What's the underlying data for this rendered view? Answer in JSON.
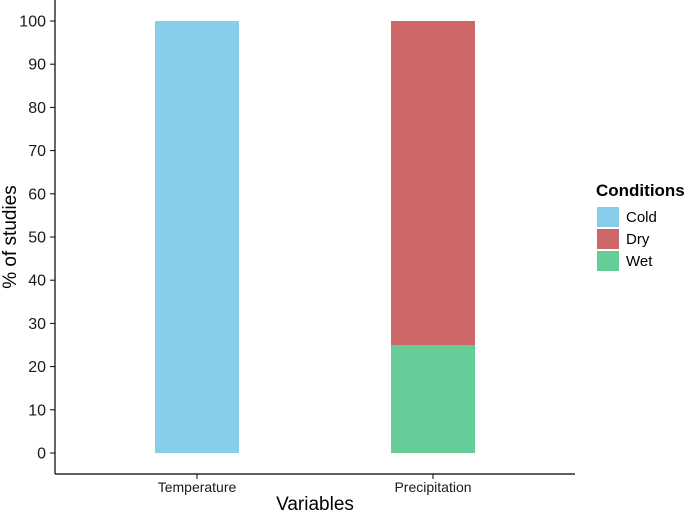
{
  "chart_data": {
    "type": "bar",
    "stacked": true,
    "categories": [
      "Temperature",
      "Precipitation"
    ],
    "series": [
      {
        "name": "Cold",
        "color": "#87CEEB",
        "values": [
          100,
          0
        ]
      },
      {
        "name": "Dry",
        "color": "#CD6666",
        "values": [
          0,
          75
        ]
      },
      {
        "name": "Wet",
        "color": "#66CD99",
        "values": [
          0,
          25
        ]
      }
    ],
    "xlabel": "Variables",
    "ylabel": "% of studies",
    "ylim": [
      0,
      100
    ],
    "yticks": [
      0,
      10,
      20,
      30,
      40,
      50,
      60,
      70,
      80,
      90,
      100
    ],
    "grid": false,
    "legend": {
      "title": "Conditions",
      "placement": "right"
    }
  }
}
